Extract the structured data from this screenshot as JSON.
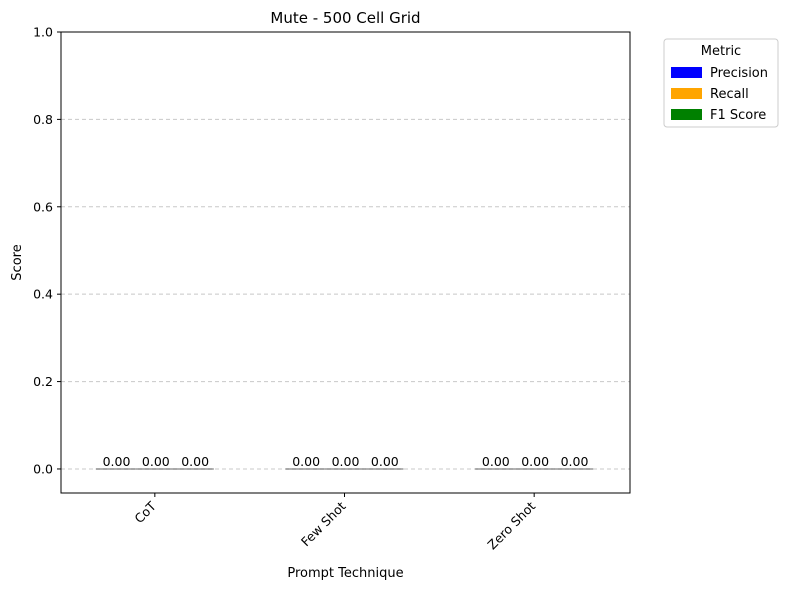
{
  "chart_data": {
    "type": "bar",
    "title": "Mute - 500 Cell Grid",
    "xlabel": "Prompt Technique",
    "ylabel": "Score",
    "categories": [
      "CoT",
      "Few Shot",
      "Zero Shot"
    ],
    "series": [
      {
        "name": "Precision",
        "color": "#0000ff",
        "values": [
          0.0,
          0.0,
          0.0
        ],
        "labels": [
          "0.00",
          "0.00",
          "0.00"
        ]
      },
      {
        "name": "Recall",
        "color": "#ffa500",
        "values": [
          0.0,
          0.0,
          0.0
        ],
        "labels": [
          "0.00",
          "0.00",
          "0.00"
        ]
      },
      {
        "name": "F1 Score",
        "color": "#008000",
        "values": [
          0.0,
          0.0,
          0.0
        ],
        "labels": [
          "0.00",
          "0.00",
          "0.00"
        ]
      }
    ],
    "ylim": [
      -0.055,
      1.0
    ],
    "yticks": [
      0.0,
      0.2,
      0.4,
      0.6,
      0.8,
      1.0
    ],
    "ytick_labels": [
      "0.0",
      "0.2",
      "0.4",
      "0.6",
      "0.8",
      "1.0"
    ],
    "grid": "y-dashed",
    "legend": {
      "title": "Metric",
      "placement": "outside-top-right"
    }
  }
}
